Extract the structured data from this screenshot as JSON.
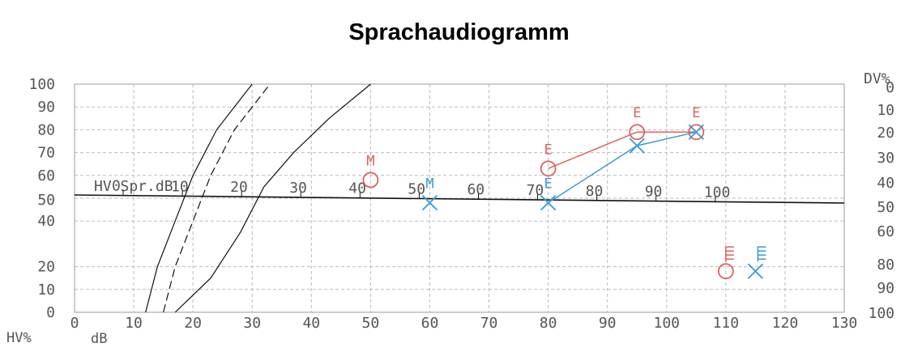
{
  "chart_data": {
    "type": "scatter",
    "title": "Sprachaudiogramm",
    "x_axis": {
      "label": "dB",
      "ticks": [
        0,
        10,
        20,
        30,
        40,
        50,
        60,
        70,
        80,
        90,
        100,
        110,
        120,
        130
      ],
      "range": [
        0,
        130
      ]
    },
    "y_left": {
      "label": "HV%",
      "ticks": [
        0,
        10,
        20,
        40,
        50,
        60,
        70,
        80,
        90,
        100
      ]
    },
    "y_right": {
      "label": "DV%",
      "ticks": [
        0,
        10,
        20,
        30,
        40,
        50,
        60,
        80,
        90,
        100
      ]
    },
    "hv_scale": {
      "label": "HV Spr.dB",
      "ticks": [
        0,
        10,
        20,
        30,
        40,
        50,
        60,
        70,
        80,
        90,
        100
      ]
    },
    "grid": true,
    "normal_curves": {
      "solid_left": [
        [
          12,
          0
        ],
        [
          14,
          20
        ],
        [
          17,
          40
        ],
        [
          20,
          60
        ],
        [
          24,
          80
        ],
        [
          30,
          100
        ]
      ],
      "dashed": [
        [
          15,
          0
        ],
        [
          17,
          20
        ],
        [
          20,
          40
        ],
        [
          23,
          60
        ],
        [
          27,
          80
        ],
        [
          33,
          100
        ]
      ],
      "solid_right": [
        [
          17,
          0
        ],
        [
          23,
          15
        ],
        [
          28,
          35
        ],
        [
          32,
          55
        ],
        [
          37,
          70
        ],
        [
          43,
          85
        ],
        [
          50,
          100
        ]
      ]
    },
    "series": [
      {
        "color": "#e06060",
        "marker": "circle",
        "points": [
          {
            "x": 50,
            "y": 58,
            "label": "M"
          },
          {
            "x": 80,
            "y": 63,
            "label": "E"
          },
          {
            "x": 95,
            "y": 79,
            "label": "E"
          },
          {
            "x": 105,
            "y": 79,
            "label": "E"
          }
        ],
        "connected": [
          [
            80,
            63
          ],
          [
            95,
            79
          ],
          [
            105,
            79
          ]
        ],
        "symbol_point": {
          "x": 110,
          "y": 18
        }
      },
      {
        "color": "#3a9ad6",
        "marker": "x",
        "points": [
          {
            "x": 60,
            "y": 48,
            "label": "M"
          },
          {
            "x": 80,
            "y": 48,
            "label": "E"
          },
          {
            "x": 95,
            "y": 73
          },
          {
            "x": 105,
            "y": 79
          }
        ],
        "connected": [
          [
            80,
            48
          ],
          [
            95,
            73
          ],
          [
            105,
            79
          ]
        ],
        "symbol_point": {
          "x": 115,
          "y": 18
        }
      }
    ]
  }
}
